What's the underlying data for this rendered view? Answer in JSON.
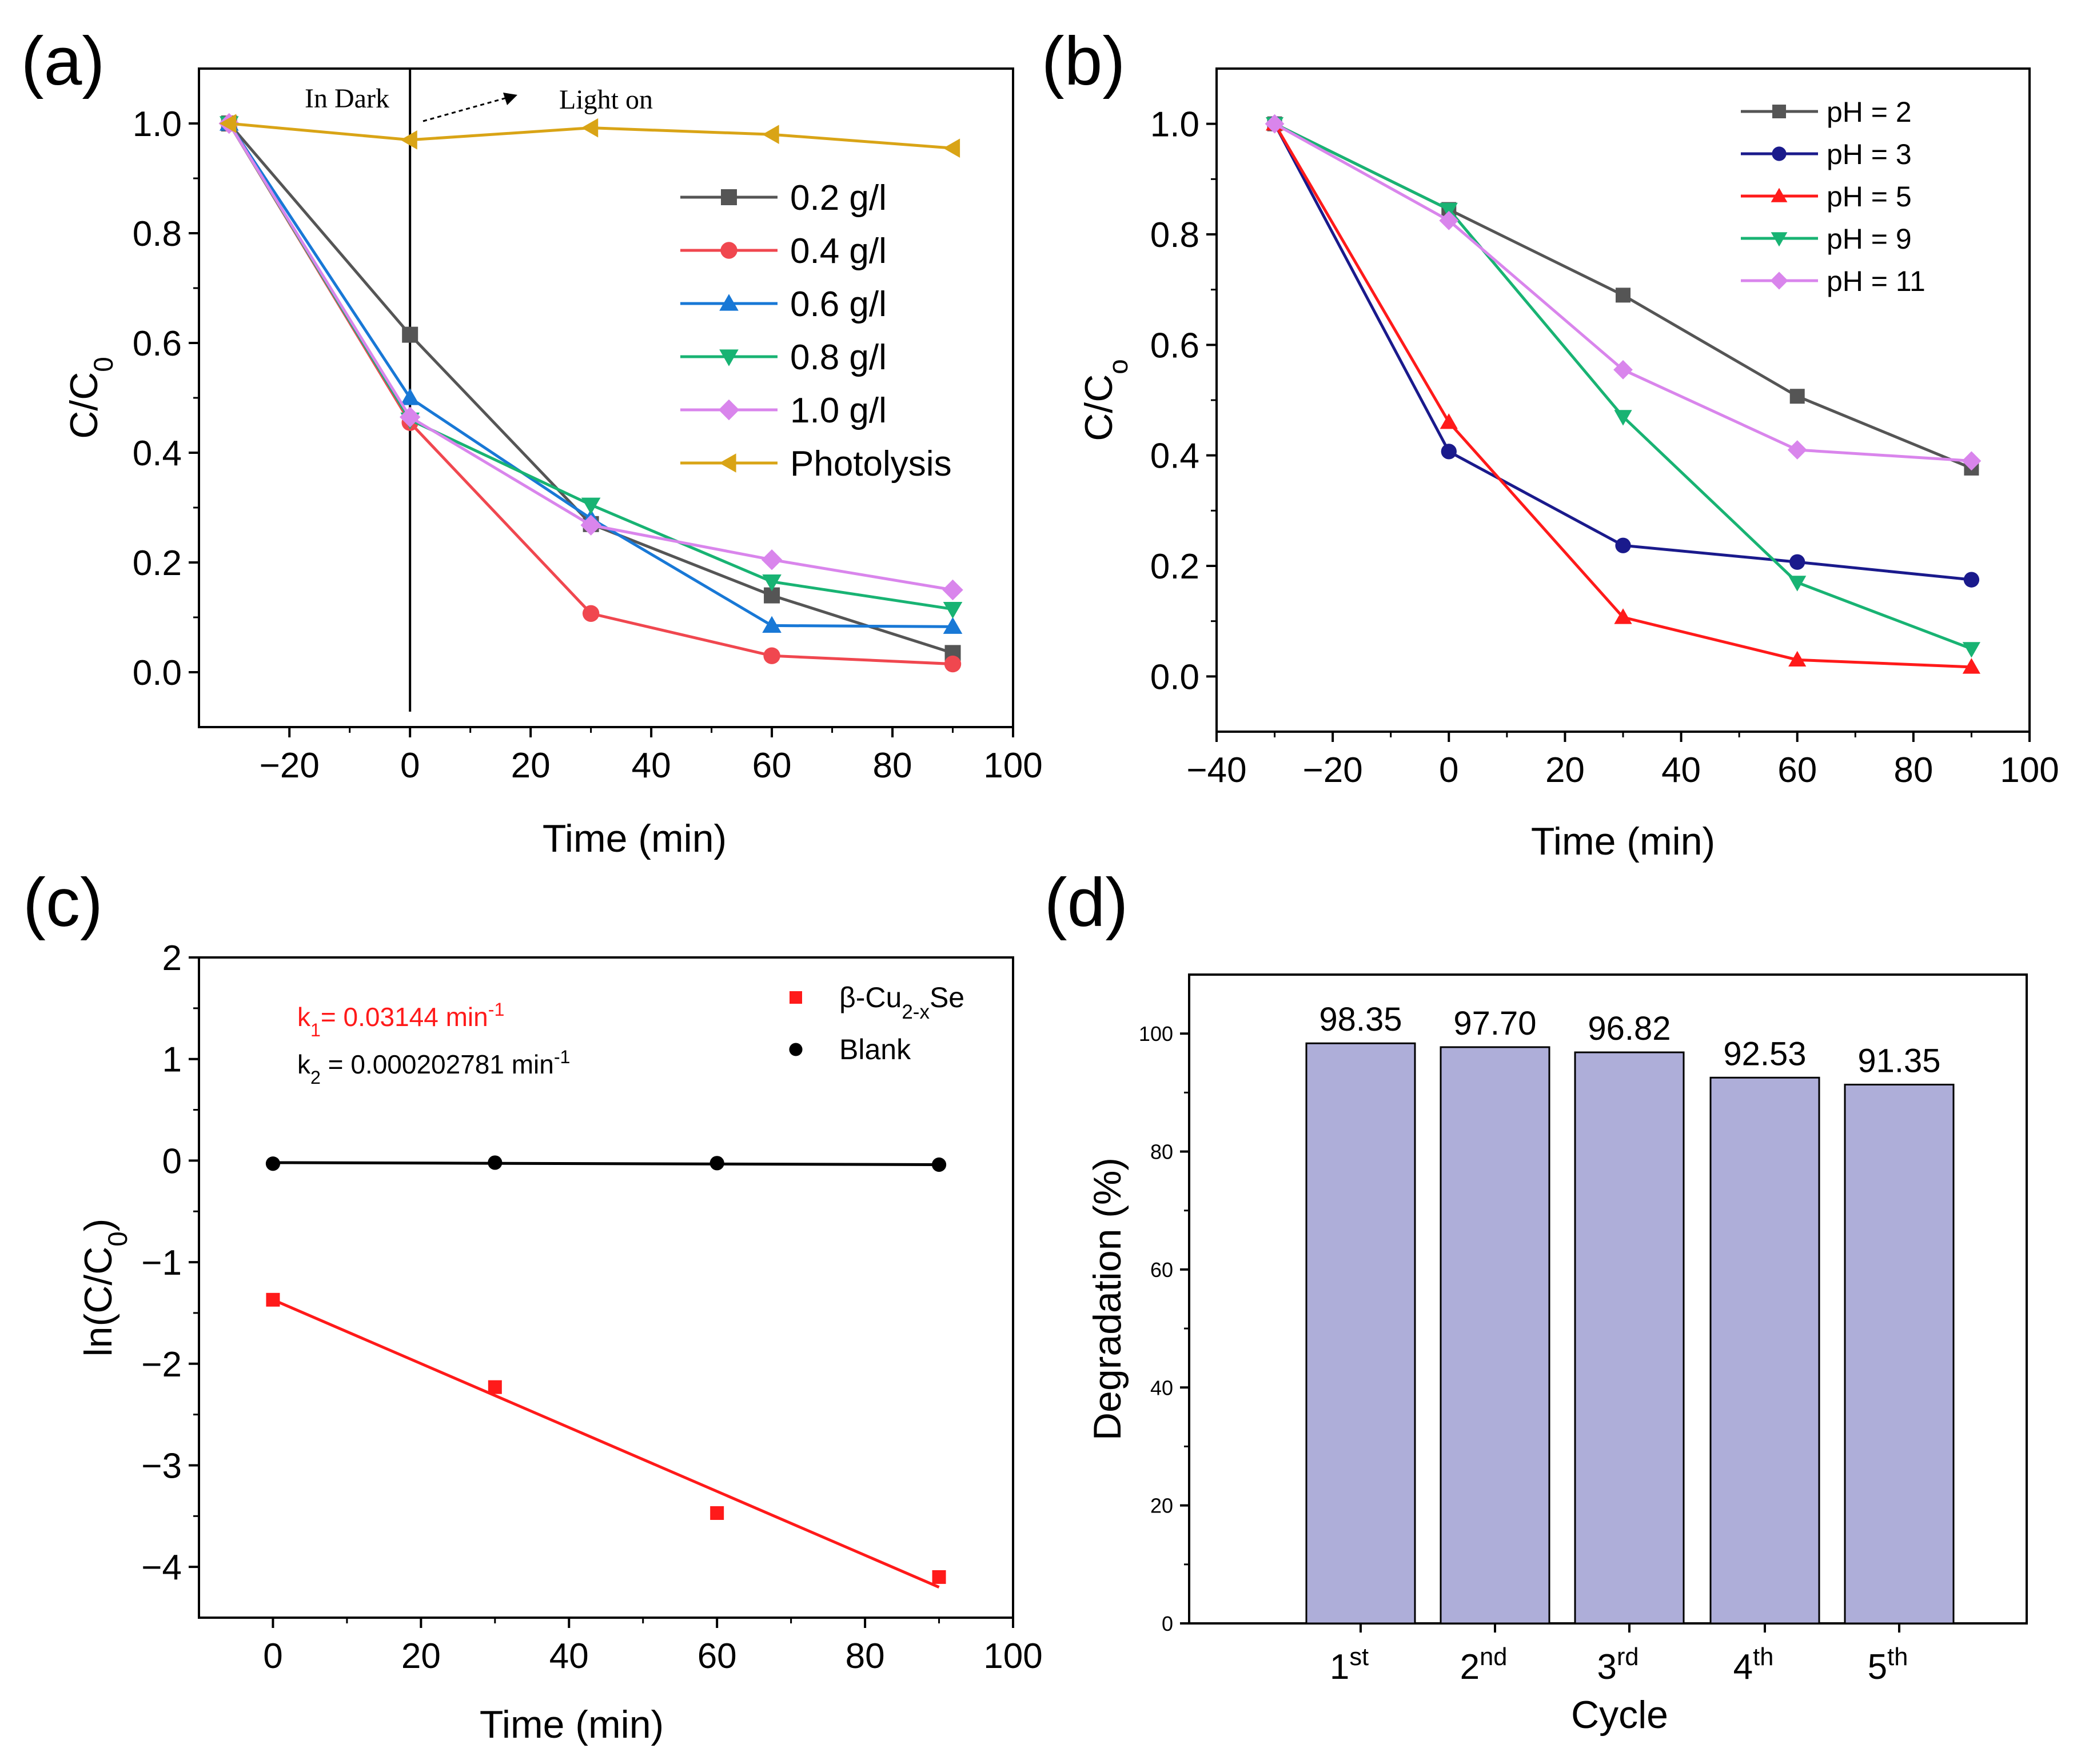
{
  "chart_data": [
    {
      "panel": "(a)",
      "type": "line",
      "xlabel": "Time (min)",
      "ylabel": "C/C",
      "ylabel_sub": "0",
      "xlim": [
        -35,
        100
      ],
      "ylim": [
        -0.1,
        1.1
      ],
      "xticks": [
        -20,
        0,
        20,
        40,
        60,
        80,
        100
      ],
      "yticks": [
        0.0,
        0.2,
        0.4,
        0.6,
        0.8,
        1.0
      ],
      "ytick_labels": [
        "0.0",
        "0.2",
        "0.4",
        "0.6",
        "0.8",
        "1.0"
      ],
      "xtick_labels": [
        "−20",
        "0",
        "20",
        "40",
        "60",
        "80",
        "100"
      ],
      "annotations": {
        "dark": "In Dark",
        "light": "Light on"
      },
      "vline_x": 0,
      "legend_position": "right",
      "x": [
        -30,
        0,
        30,
        60,
        90
      ],
      "series": [
        {
          "name": "0.2 g/l",
          "color": "#555555",
          "marker": "square",
          "values": [
            1.0,
            0.615,
            0.27,
            0.14,
            0.035
          ]
        },
        {
          "name": "0.4 g/l",
          "color": "#f0474f",
          "marker": "circle",
          "values": [
            1.0,
            0.455,
            0.107,
            0.03,
            0.015
          ]
        },
        {
          "name": "0.6 g/l",
          "color": "#1878d6",
          "marker": "triangle-up",
          "values": [
            1.0,
            0.5,
            0.28,
            0.085,
            0.083
          ]
        },
        {
          "name": "0.8 g/l",
          "color": "#18b373",
          "marker": "triangle-down",
          "values": [
            1.0,
            0.46,
            0.305,
            0.165,
            0.115
          ]
        },
        {
          "name": "1.0 g/l",
          "color": "#d985ec",
          "marker": "diamond",
          "values": [
            1.0,
            0.465,
            0.268,
            0.205,
            0.15
          ]
        },
        {
          "name": "Photolysis",
          "color": "#d9a416",
          "marker": "triangle-left",
          "values": [
            1.0,
            0.97,
            0.992,
            0.98,
            0.955
          ]
        }
      ]
    },
    {
      "panel": "(b)",
      "type": "line",
      "xlabel": "Time (min)",
      "ylabel": "C/C",
      "ylabel_sub": "o",
      "xlim": [
        -40,
        100
      ],
      "ylim": [
        -0.1,
        1.1
      ],
      "xticks": [
        -40,
        -20,
        0,
        20,
        40,
        60,
        80,
        100
      ],
      "xtick_labels": [
        "−40",
        "−20",
        "0",
        "20",
        "40",
        "60",
        "80",
        "100"
      ],
      "yticks": [
        0.0,
        0.2,
        0.4,
        0.6,
        0.8,
        1.0
      ],
      "ytick_labels": [
        "0.0",
        "0.2",
        "0.4",
        "0.6",
        "0.8",
        "1.0"
      ],
      "legend_position": "top-right",
      "x": [
        -30,
        0,
        30,
        60,
        90
      ],
      "series": [
        {
          "name": "pH = 2",
          "color": "#555555",
          "marker": "square",
          "values": [
            1.0,
            0.845,
            0.69,
            0.507,
            0.377
          ]
        },
        {
          "name": "pH = 3",
          "color": "#1a1a8c",
          "marker": "circle",
          "values": [
            1.0,
            0.407,
            0.237,
            0.207,
            0.175
          ]
        },
        {
          "name": "pH = 5",
          "color": "#ff1a1a",
          "marker": "triangle-up",
          "values": [
            1.0,
            0.46,
            0.107,
            0.03,
            0.017
          ]
        },
        {
          "name": "pH = 9",
          "color": "#18b373",
          "marker": "triangle-down",
          "values": [
            1.0,
            0.845,
            0.47,
            0.17,
            0.05
          ]
        },
        {
          "name": "pH = 11",
          "color": "#d985ec",
          "marker": "diamond",
          "values": [
            1.0,
            0.825,
            0.555,
            0.41,
            0.39
          ]
        }
      ]
    },
    {
      "panel": "(c)",
      "type": "scatter",
      "xlabel": "Time (min)",
      "ylabel": "ln(C/C",
      "ylabel_sub": "0",
      "ylabel_end": ")",
      "xlim": [
        -10,
        100
      ],
      "ylim": [
        -4.5,
        2
      ],
      "xticks": [
        0,
        20,
        40,
        60,
        80,
        100
      ],
      "xtick_labels": [
        "0",
        "20",
        "40",
        "60",
        "80",
        "100"
      ],
      "yticks": [
        -4,
        -3,
        -2,
        -1,
        0,
        1,
        2
      ],
      "ytick_labels": [
        "−4",
        "−3",
        "−2",
        "−1",
        "0",
        "1",
        "2"
      ],
      "legend_position": "top-right",
      "k1": {
        "label": "k",
        "sub": "1",
        "text": "= 0.03144 min",
        "sup": "-1"
      },
      "k2": {
        "label": "k",
        "sub": "2",
        "text": " = 0.000202781 min",
        "sup": "-1"
      },
      "series": [
        {
          "name_prefix": "β-Cu",
          "name_sub": "2-x",
          "name_suffix": "Se",
          "color": "#ff1a1a",
          "marker": "square",
          "x": [
            0,
            30,
            60,
            90
          ],
          "values": [
            -1.37,
            -2.23,
            -3.47,
            -4.1
          ],
          "fit": {
            "x": [
              0,
              90
            ],
            "y": [
              -1.37,
              -4.2
            ]
          }
        },
        {
          "name": "Blank",
          "color": "#000000",
          "marker": "circle",
          "x": [
            0,
            30,
            60,
            90
          ],
          "values": [
            -0.03,
            -0.02,
            -0.025,
            -0.04
          ],
          "fit": {
            "x": [
              0,
              90
            ],
            "y": [
              -0.02,
              -0.04
            ]
          }
        }
      ]
    },
    {
      "panel": "(d)",
      "type": "bar",
      "xlabel": "Cycle",
      "ylabel": "Degradation (%)",
      "ylim": [
        0,
        110
      ],
      "yticks": [
        0,
        20,
        40,
        60,
        80,
        100
      ],
      "ytick_labels": [
        "0",
        "20",
        "40",
        "60",
        "80",
        "100"
      ],
      "bar_color": "#aeaed9",
      "categories": [
        {
          "num": "1",
          "sup": "st"
        },
        {
          "num": "2",
          "sup": "nd"
        },
        {
          "num": "3",
          "sup": "rd"
        },
        {
          "num": "4",
          "sup": "th"
        },
        {
          "num": "5",
          "sup": "th"
        }
      ],
      "values": [
        98.35,
        97.7,
        96.82,
        92.53,
        91.35
      ],
      "value_labels": [
        "98.35",
        "97.70",
        "96.82",
        "92.53",
        "91.35"
      ]
    }
  ]
}
